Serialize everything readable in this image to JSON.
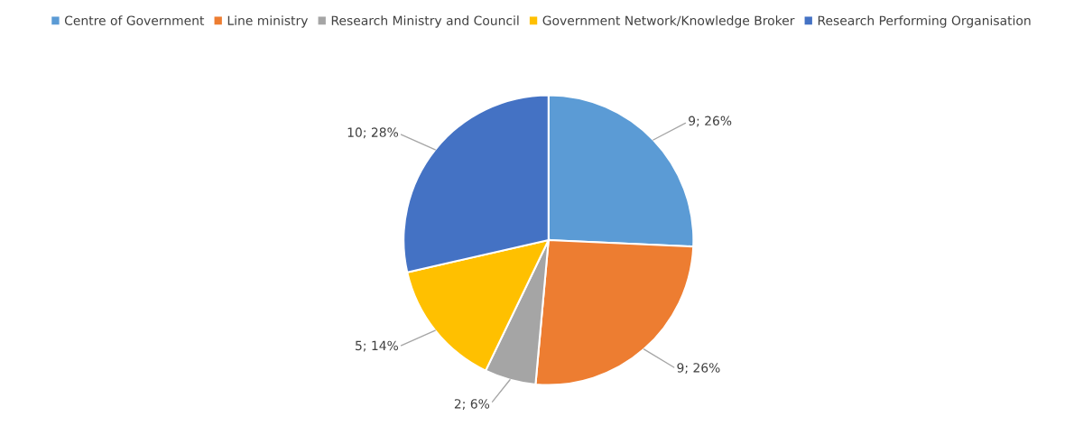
{
  "chart_data": {
    "type": "pie",
    "categories": [
      "Centre of Government",
      "Line ministry",
      "Research Ministry and Council",
      "Government Network/Knowledge Broker",
      "Research Performing Organisation"
    ],
    "values": [
      9,
      9,
      2,
      5,
      10
    ],
    "value_labels": [
      "9; 26%",
      "9; 26%",
      "2; 6%",
      "5; 14%",
      "10; 28%"
    ],
    "colors": [
      "#5b9bd5",
      "#ed7d31",
      "#a5a5a5",
      "#ffc000",
      "#4472c4"
    ],
    "legend": "top"
  }
}
